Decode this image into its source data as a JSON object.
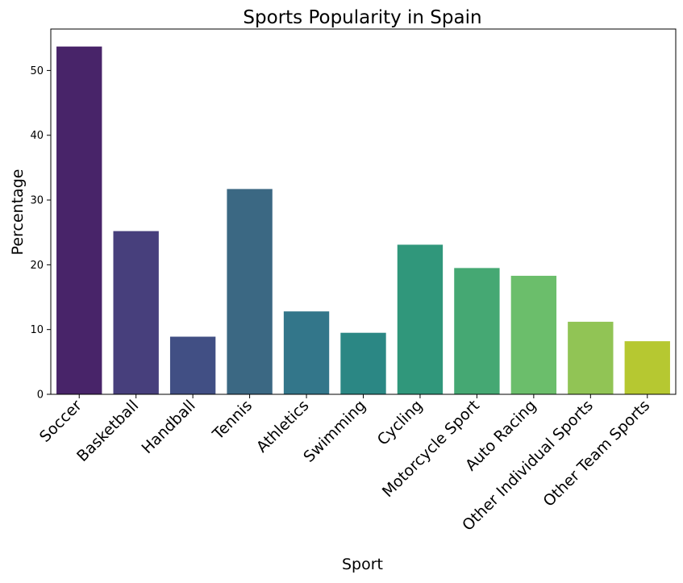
{
  "chart_data": {
    "type": "bar",
    "title": "Sports Popularity in Spain",
    "xlabel": "Sport",
    "ylabel": "Percentage",
    "categories": [
      "Soccer",
      "Basketball",
      "Handball",
      "Tennis",
      "Athletics",
      "Swimming",
      "Cycling",
      "Motorcycle Sport",
      "Auto Racing",
      "Other Individual Sports",
      "Other Team Sports"
    ],
    "values": [
      53.7,
      25.2,
      8.9,
      31.7,
      12.8,
      9.5,
      23.1,
      19.5,
      18.3,
      11.2,
      8.2
    ],
    "colors": [
      "#482469",
      "#473f7c",
      "#414f84",
      "#3b6883",
      "#33768a",
      "#2b8784",
      "#30977b",
      "#45a873",
      "#6bbe6b",
      "#91c455",
      "#b6c831"
    ],
    "ylim": [
      0,
      56.4
    ],
    "yticks": [
      0,
      10,
      20,
      30,
      40,
      50
    ],
    "grid": false,
    "legend": "none"
  }
}
